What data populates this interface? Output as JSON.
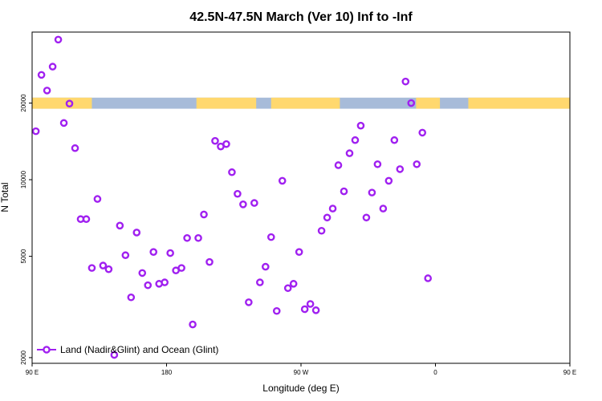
{
  "chart_data": {
    "type": "scatter",
    "title": "42.5N-47.5N March (Ver 10)   Inf to -Inf",
    "xlabel": "Longitude (deg E)",
    "ylabel": "N Total",
    "x_scale": "longitude",
    "y_scale": "log",
    "xlim": [
      90,
      450
    ],
    "ylim": [
      1900,
      38000
    ],
    "x_ticks": [
      {
        "value": 90,
        "label": "90 E"
      },
      {
        "value": 180,
        "label": "180"
      },
      {
        "value": 270,
        "label": "90 W"
      },
      {
        "value": 360,
        "label": "0"
      },
      {
        "value": 450,
        "label": "90 E"
      },
      {
        "value": 540,
        "label": "180"
      }
    ],
    "y_ticks": [
      {
        "value": 2000,
        "label": "2000"
      },
      {
        "value": 5000,
        "label": "5000"
      },
      {
        "value": 10000,
        "label": "10000"
      },
      {
        "value": 20000,
        "label": "20000"
      }
    ],
    "grid": false,
    "legend_position": "bottom-left",
    "land_ocean_band": {
      "y_range": [
        19000,
        21000
      ],
      "land_color": "#FFD86E",
      "ocean_color": "#A7BBD9",
      "land_segments": [
        [
          90,
          130
        ],
        [
          200,
          240
        ],
        [
          250,
          296
        ],
        [
          347,
          363
        ],
        [
          382,
          490
        ],
        [
          506,
          545
        ]
      ]
    },
    "series": [
      {
        "name": "Land (Nadir&Glint) and Ocean (Glint)",
        "color": "#A020F0",
        "marker": "open-circle",
        "points": [
          [
            92.5,
            15500
          ],
          [
            96.25,
            25800
          ],
          [
            100,
            22400
          ],
          [
            103.75,
            27800
          ],
          [
            107.5,
            35500
          ],
          [
            111.25,
            16700
          ],
          [
            115,
            19900
          ],
          [
            118.75,
            13300
          ],
          [
            122.5,
            7000
          ],
          [
            126.25,
            7000
          ],
          [
            130,
            4500
          ],
          [
            133.75,
            8400
          ],
          [
            137.5,
            4600
          ],
          [
            141.25,
            4450
          ],
          [
            145,
            2050
          ],
          [
            148.75,
            6600
          ],
          [
            152.5,
            5050
          ],
          [
            156.25,
            3450
          ],
          [
            160,
            6200
          ],
          [
            163.75,
            4300
          ],
          [
            167.5,
            3850
          ],
          [
            171.25,
            5200
          ],
          [
            175,
            3900
          ],
          [
            178.75,
            3950
          ],
          [
            182.5,
            5150
          ],
          [
            186.25,
            4400
          ],
          [
            190,
            4500
          ],
          [
            193.75,
            5900
          ],
          [
            197.5,
            2700
          ],
          [
            201.25,
            5900
          ],
          [
            205,
            7300
          ],
          [
            208.75,
            4750
          ],
          [
            212.5,
            14200
          ],
          [
            216.25,
            13500
          ],
          [
            220,
            13800
          ],
          [
            223.75,
            10700
          ],
          [
            227.5,
            8800
          ],
          [
            231.25,
            8000
          ],
          [
            235,
            3300
          ],
          [
            238.75,
            8100
          ],
          [
            242.5,
            3950
          ],
          [
            246.25,
            4550
          ],
          [
            250,
            5950
          ],
          [
            253.75,
            3050
          ],
          [
            257.5,
            9900
          ],
          [
            261.25,
            3750
          ],
          [
            265,
            3900
          ],
          [
            268.75,
            5200
          ],
          [
            272.5,
            3100
          ],
          [
            276.25,
            3250
          ],
          [
            280,
            3070
          ],
          [
            283.75,
            6300
          ],
          [
            287.5,
            7100
          ],
          [
            291.25,
            7700
          ],
          [
            295,
            11400
          ],
          [
            298.75,
            9000
          ],
          [
            302.5,
            12700
          ],
          [
            306.25,
            14300
          ],
          [
            310,
            16300
          ],
          [
            313.75,
            7100
          ],
          [
            317.5,
            8900
          ],
          [
            321.25,
            11500
          ],
          [
            325,
            7700
          ],
          [
            328.75,
            9900
          ],
          [
            332.5,
            14300
          ],
          [
            336.25,
            11000
          ],
          [
            340,
            24300
          ],
          [
            343.75,
            20000
          ],
          [
            347.5,
            11500
          ],
          [
            351.25,
            15300
          ],
          [
            355,
            4100
          ]
        ]
      }
    ]
  }
}
